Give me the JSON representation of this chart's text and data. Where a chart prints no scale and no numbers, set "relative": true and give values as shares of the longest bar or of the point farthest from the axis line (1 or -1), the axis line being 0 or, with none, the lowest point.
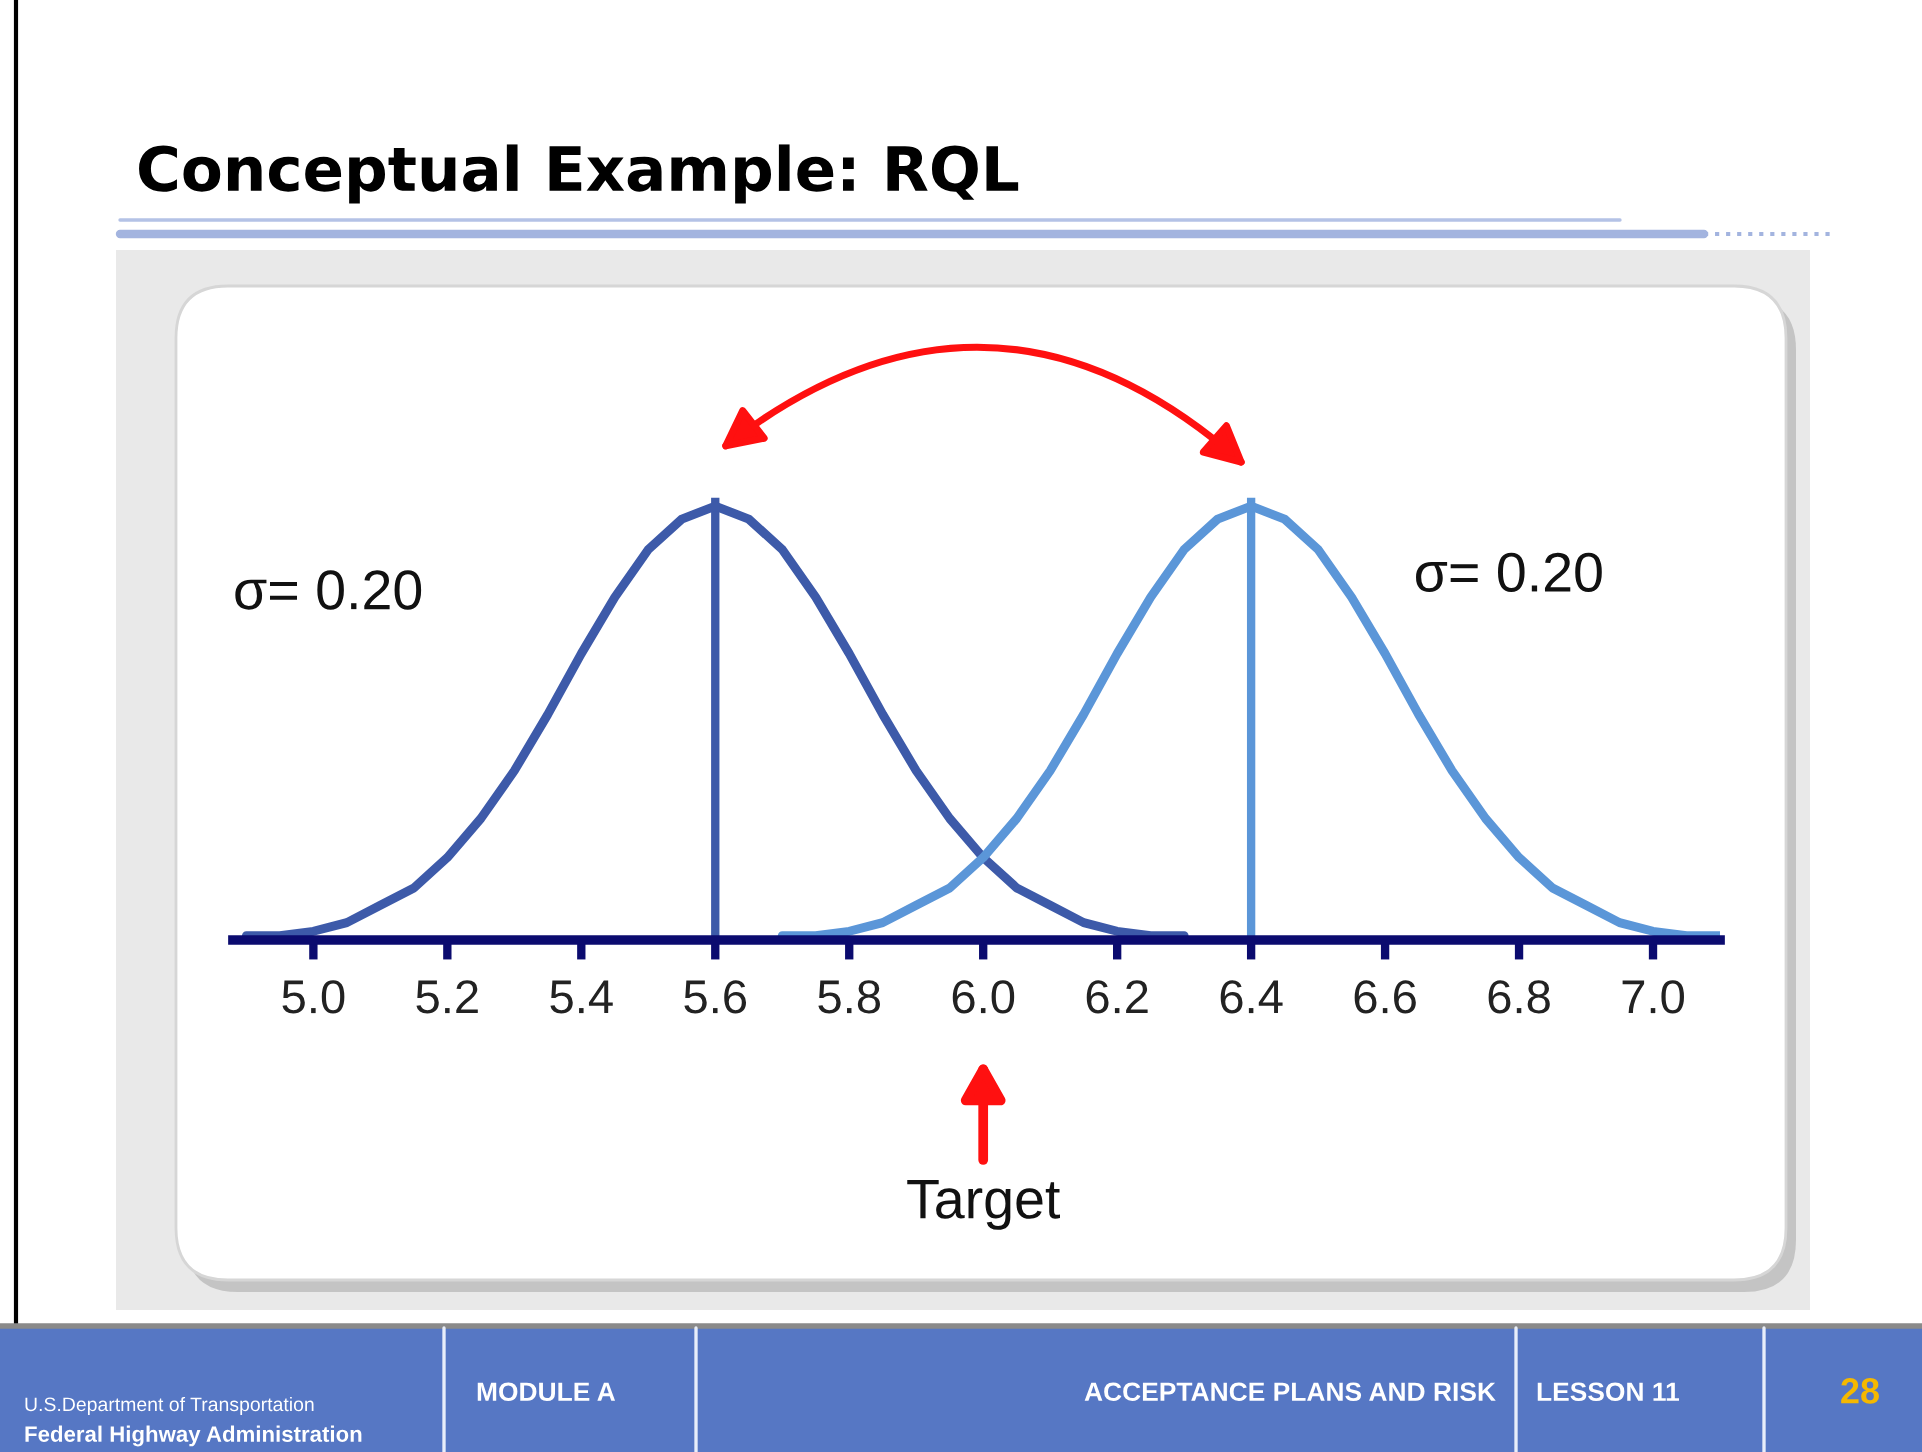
{
  "chart_data": {
    "type": "line",
    "title": "Conceptual Example: RQL",
    "relative": true,
    "xlim": [
      4.88,
      7.1
    ],
    "xticks": [
      {
        "value": 5,
        "label": "5.0"
      },
      {
        "value": 5.2,
        "label": "5.2"
      },
      {
        "value": 5.4,
        "label": "5.4"
      },
      {
        "value": 5.6,
        "label": "5.6"
      },
      {
        "value": 5.8,
        "label": "5.8"
      },
      {
        "value": 6,
        "label": "6.0"
      },
      {
        "value": 6.2,
        "label": "6.2"
      },
      {
        "value": 6.4,
        "label": "6.4"
      },
      {
        "value": 6.6,
        "label": "6.6"
      },
      {
        "value": 6.8,
        "label": "6.8"
      },
      {
        "value": 7,
        "label": "7.0"
      }
    ],
    "tick_labels": "x",
    "line_style": "solid",
    "series": [
      {
        "color": "#3d5aa9",
        "x": [
          4.9,
          4.95,
          5.0,
          5.05,
          5.1,
          5.15,
          5.2,
          5.25,
          5.3,
          5.35,
          5.4,
          5.45,
          5.5,
          5.55,
          5.6,
          5.65,
          5.7,
          5.75,
          5.8,
          5.85,
          5.9,
          5.95,
          6.0,
          6.05,
          6.1,
          6.15,
          6.2,
          6.25,
          6.3
        ],
        "values": [
          0.01,
          0.01,
          0.02,
          0.04,
          0.08,
          0.12,
          0.19,
          0.28,
          0.39,
          0.52,
          0.66,
          0.79,
          0.9,
          0.97,
          1,
          0.97,
          0.9,
          0.79,
          0.66,
          0.52,
          0.39,
          0.28,
          0.19,
          0.12,
          0.08,
          0.04,
          0.02,
          0.01,
          0.01
        ]
      },
      {
        "color": "#5b96d8",
        "x": [
          5.7,
          5.75,
          5.8,
          5.85,
          5.9,
          5.95,
          6.0,
          6.05,
          6.1,
          6.15,
          6.2,
          6.25,
          6.3,
          6.35,
          6.4,
          6.45,
          6.5,
          6.55,
          6.6,
          6.65,
          6.7,
          6.75,
          6.8,
          6.85,
          6.9,
          6.95,
          7.0,
          7.05,
          7.1
        ],
        "values": [
          0.01,
          0.01,
          0.02,
          0.04,
          0.08,
          0.12,
          0.19,
          0.28,
          0.39,
          0.52,
          0.66,
          0.79,
          0.9,
          0.97,
          1,
          0.97,
          0.9,
          0.79,
          0.66,
          0.52,
          0.39,
          0.28,
          0.19,
          0.12,
          0.08,
          0.04,
          0.02,
          0.01,
          0.01
        ]
      }
    ],
    "ref_lines": [
      {
        "axis": "x",
        "value": 5.6,
        "color": "#3d5aa9"
      },
      {
        "axis": "x",
        "value": 6.4,
        "color": "#5b96d8"
      }
    ],
    "annotations": [
      "σ= 0.20",
      "σ= 0.20",
      "Target",
      "U.S.Department of Transportation",
      "Federal Highway Administration",
      "MODULE A",
      "ACCEPTANCE PLANS AND RISK",
      "LESSON 11",
      "28"
    ]
  }
}
